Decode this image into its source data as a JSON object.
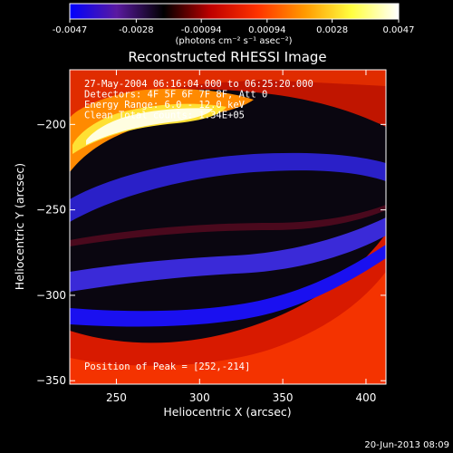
{
  "chart_data": {
    "type": "heatmap",
    "title": "Reconstructed RHESSI Image",
    "xlabel": "Heliocentric X (arcsec)",
    "ylabel": "Heliocentric Y (arcsec)",
    "xlim": [
      222,
      412
    ],
    "ylim": [
      -352,
      -168
    ],
    "xticks": [
      250,
      300,
      350,
      400
    ],
    "yticks": [
      -200,
      -250,
      -300,
      -350
    ],
    "colorbar": {
      "range": [
        -0.0047,
        0.0047
      ],
      "ticks": [
        -0.0047,
        -0.0028,
        -0.00094,
        0.00094,
        0.0028,
        0.0047
      ],
      "tick_labels": [
        "-0.0047",
        "-0.0028",
        "-0.00094",
        "0.00094",
        "0.0028",
        "0.0047"
      ],
      "unit_label": "(photons cm⁻² s⁻¹ asec⁻²)",
      "colormap": [
        "#0000ff",
        "#5a1aa0",
        "#000000",
        "#bf0000",
        "#ff3300",
        "#ff9900",
        "#ffff40",
        "#ffffff"
      ]
    },
    "annotations": [
      "27-May-2004 06:16:04.000 to 06:25:20.000",
      "Detectors: 4F 5F 6F 7F 8F, Att 0",
      "Energy Range: 6.0 - 12.0 keV",
      "Clean     Total counts: 1.34E+05"
    ],
    "peak": {
      "label": "Position of Peak = [252,-214]",
      "x": 252,
      "y": -214
    },
    "grid": false,
    "legend": "colorbar-top"
  },
  "footer": {
    "timestamp": "20-Jun-2013 08:09"
  }
}
